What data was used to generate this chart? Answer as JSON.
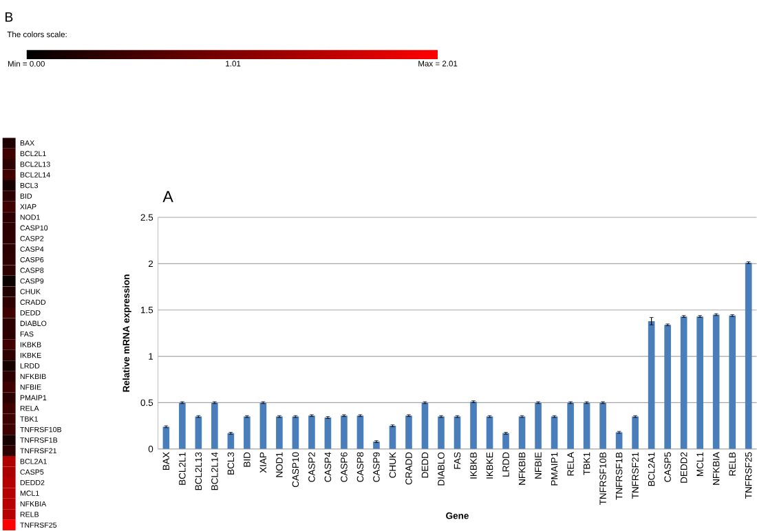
{
  "chart_data": [
    {
      "type": "heatmap",
      "title": "B",
      "clabel": "The colors scale:",
      "categories": [
        null
      ],
      "y_categories": [
        "BAX",
        "BCL2L1",
        "BCL2L13",
        "BCL2L14",
        "BCL3",
        "BID",
        "XIAP",
        "NOD1",
        "CASP10",
        "CASP2",
        "CASP4",
        "CASP6",
        "CASP8",
        "CASP9",
        "CHUK",
        "CRADD",
        "DEDD",
        "DIABLO",
        "FAS",
        "IKBKB",
        "IKBKE",
        "LRDD",
        "NFKBIB",
        "NFBIE",
        "PMAIP1",
        "RELA",
        "TBK1",
        "TNFRSF10B",
        "TNFRSF1B",
        "TNFRSF21",
        "BCL2A1",
        "CASP5",
        "DEDD2",
        "MCL1",
        "NFKBIA",
        "RELB",
        "TNFRSF25"
      ],
      "cells": [
        [
          0.24
        ],
        [
          0.5
        ],
        [
          0.35
        ],
        [
          0.5
        ],
        [
          0.17
        ],
        [
          0.35
        ],
        [
          0.5
        ],
        [
          0.35
        ],
        [
          0.35
        ],
        [
          0.36
        ],
        [
          0.34
        ],
        [
          0.36
        ],
        [
          0.36
        ],
        [
          0.08
        ],
        [
          0.25
        ],
        [
          0.36
        ],
        [
          0.5
        ],
        [
          0.35
        ],
        [
          0.35
        ],
        [
          0.51
        ],
        [
          0.35
        ],
        [
          0.17
        ],
        [
          0.35
        ],
        [
          0.5
        ],
        [
          0.35
        ],
        [
          0.5
        ],
        [
          0.5
        ],
        [
          0.5
        ],
        [
          0.18
        ],
        [
          0.35
        ],
        [
          1.38
        ],
        [
          1.34
        ],
        [
          1.43
        ],
        [
          1.43
        ],
        [
          1.45
        ],
        [
          1.44
        ],
        [
          2.01
        ]
      ],
      "clim": [
        0,
        2.01
      ],
      "cticks": [
        {
          "value": 0,
          "label": "Min = 0.00"
        },
        1.01,
        {
          "value": 2.01,
          "label": "Max = 2.01"
        }
      ]
    },
    {
      "type": "bar",
      "title": "A",
      "xlabel": "Gene",
      "ylabel": "Relative mRNA expression",
      "color": "#4a7ebb",
      "categories": [
        "BAX",
        "BCL2L1",
        "BCL2L13",
        "BCL2L14",
        "BCL3",
        "BID",
        "XIAP",
        "NOD1",
        "CASP10",
        "CASP2",
        "CASP4",
        "CASP6",
        "CASP8",
        "CASP9",
        "CHUK",
        "CRADD",
        "DEDD",
        "DIABLO",
        "FAS",
        "IKBKB",
        "IKBKE",
        "LRDD",
        "NFKBIB",
        "NFBIE",
        "PMAIP1",
        "RELA",
        "TBK1",
        "TNFRSF10B",
        "TNFRSF1B",
        "TNFRSF21",
        "BCL2A1",
        "CASP5",
        "DEDD2",
        "MCL1",
        "NFKBIA",
        "RELB",
        "TNFRSF25"
      ],
      "values": [
        0.24,
        0.5,
        0.35,
        0.5,
        0.17,
        0.35,
        0.5,
        0.35,
        0.35,
        0.36,
        0.34,
        0.36,
        0.36,
        0.08,
        0.25,
        0.36,
        0.5,
        0.35,
        0.35,
        0.51,
        0.35,
        0.17,
        0.35,
        0.5,
        0.35,
        0.5,
        0.5,
        0.5,
        0.18,
        0.35,
        1.38,
        1.34,
        1.43,
        1.43,
        1.45,
        1.44,
        2.01
      ],
      "errors": [
        0.01,
        0.01,
        0.01,
        0.01,
        0.01,
        0.01,
        0.01,
        0.01,
        0.01,
        0.01,
        0.01,
        0.01,
        0.01,
        0.01,
        0.01,
        0.01,
        0.01,
        0.01,
        0.01,
        0.01,
        0.01,
        0.01,
        0.01,
        0.01,
        0.01,
        0.01,
        0.01,
        0.01,
        0.01,
        0.01,
        0.04,
        0.01,
        0.01,
        0.01,
        0.01,
        0.01,
        0.01
      ],
      "ylim": [
        0,
        2.5
      ],
      "yticks": [
        0,
        0.5,
        1,
        1.5,
        2,
        2.5
      ],
      "grid": "y"
    }
  ]
}
